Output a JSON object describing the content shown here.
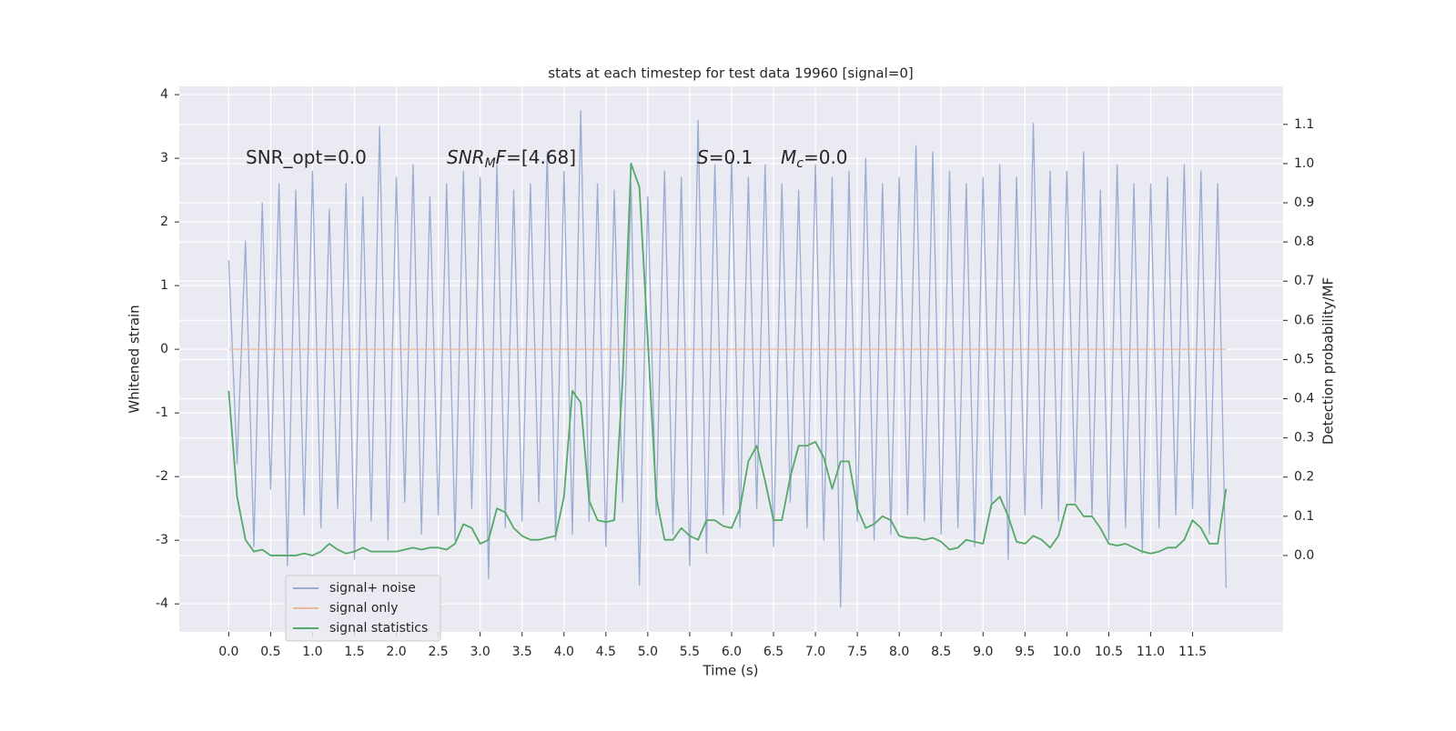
{
  "chart_data": {
    "type": "line",
    "title": "stats at each timestep for test data 19960 [signal=0]",
    "xlabel": "Time (s)",
    "ylabel": "Whitened strain",
    "y2label": "Detection probability/MF",
    "annotations": [
      [
        {
          "text": "SNR_opt=0.0",
          "style": "normal"
        }
      ],
      [
        {
          "text": "SNR",
          "style": "italic"
        },
        {
          "text": "M",
          "style": "sub"
        },
        {
          "text": "F",
          "style": "italic"
        },
        {
          "text": "=[4.68]",
          "style": "normal"
        }
      ],
      [
        {
          "text": "S",
          "style": "italic"
        },
        {
          "text": "=0.1",
          "style": "normal"
        }
      ],
      [
        {
          "text": "M",
          "style": "italic"
        },
        {
          "text": "c",
          "style": "sub"
        },
        {
          "text": "=0.0",
          "style": "normal"
        }
      ]
    ],
    "x": [
      0,
      0.1,
      0.2,
      0.3,
      0.4,
      0.5,
      0.6,
      0.7,
      0.8,
      0.9,
      1,
      1.1,
      1.2,
      1.3,
      1.4,
      1.5,
      1.6,
      1.7,
      1.8,
      1.9,
      2,
      2.1,
      2.2,
      2.3,
      2.4,
      2.5,
      2.6,
      2.7,
      2.8,
      2.9,
      3,
      3.1,
      3.2,
      3.3,
      3.4,
      3.5,
      3.6,
      3.7,
      3.8,
      3.9,
      4,
      4.1,
      4.2,
      4.3,
      4.4,
      4.5,
      4.6,
      4.7,
      4.8,
      4.9,
      5,
      5.1,
      5.2,
      5.3,
      5.4,
      5.5,
      5.6,
      5.7,
      5.8,
      5.9,
      6,
      6.1,
      6.2,
      6.3,
      6.4,
      6.5,
      6.6,
      6.7,
      6.8,
      6.9,
      7,
      7.1,
      7.2,
      7.3,
      7.4,
      7.5,
      7.6,
      7.7,
      7.8,
      7.9,
      8,
      8.1,
      8.2,
      8.3,
      8.4,
      8.5,
      8.6,
      8.7,
      8.8,
      8.9,
      9,
      9.1,
      9.2,
      9.3,
      9.4,
      9.5,
      9.6,
      9.7,
      9.8,
      9.9,
      10,
      10.1,
      10.2,
      10.3,
      10.4,
      10.5,
      10.6,
      10.7,
      10.8,
      10.9,
      11,
      11.1,
      11.2,
      11.3,
      11.4,
      11.5,
      11.6,
      11.7,
      11.8,
      11.9
    ],
    "series": [
      {
        "name": "signal+ noise",
        "color": "#9aacd1",
        "axis": "y",
        "values": [
          1.4,
          -1.8,
          1.7,
          -3.1,
          2.3,
          -2.2,
          2.6,
          -3.4,
          2.5,
          -2.6,
          2.8,
          -2.8,
          2.2,
          -2.5,
          2.6,
          -3.3,
          2.4,
          -2.7,
          3.5,
          -3.0,
          2.7,
          -2.4,
          2.9,
          -2.9,
          2.4,
          -2.6,
          2.6,
          -3.0,
          2.8,
          -2.5,
          2.7,
          -3.6,
          2.9,
          -2.8,
          2.5,
          -2.7,
          2.6,
          -2.4,
          3.1,
          -3.0,
          2.8,
          -2.9,
          3.75,
          -2.7,
          2.6,
          -3.1,
          2.5,
          -2.4,
          2.6,
          -3.7,
          2.4,
          -2.6,
          2.8,
          -2.9,
          2.7,
          -3.4,
          3.6,
          -3.2,
          2.9,
          -2.6,
          3.0,
          -2.8,
          2.7,
          -2.5,
          2.9,
          -3.1,
          2.6,
          -2.4,
          2.5,
          -2.8,
          2.9,
          -3.0,
          2.7,
          -4.05,
          2.8,
          -2.7,
          3.0,
          -3.0,
          2.6,
          -2.9,
          2.7,
          -2.6,
          3.2,
          -2.7,
          3.1,
          -2.9,
          2.8,
          -2.8,
          2.6,
          -3.1,
          2.7,
          -2.5,
          2.9,
          -3.3,
          2.7,
          -2.6,
          3.55,
          -2.5,
          2.8,
          -2.7,
          2.8,
          -2.4,
          3.1,
          -2.6,
          2.5,
          -3.0,
          2.9,
          -2.8,
          2.6,
          -3.2,
          2.6,
          -2.8,
          2.7,
          -2.6,
          2.9,
          -2.5,
          2.8,
          -2.9,
          2.6,
          -3.75
        ]
      },
      {
        "name": "signal only",
        "color": "#eeb79a",
        "axis": "y",
        "values": [
          0,
          0,
          0,
          0,
          0,
          0,
          0,
          0,
          0,
          0,
          0,
          0,
          0,
          0,
          0,
          0,
          0,
          0,
          0,
          0,
          0,
          0,
          0,
          0,
          0,
          0,
          0,
          0,
          0,
          0,
          0,
          0,
          0,
          0,
          0,
          0,
          0,
          0,
          0,
          0,
          0,
          0,
          0,
          0,
          0,
          0,
          0,
          0,
          0,
          0,
          0,
          0,
          0,
          0,
          0,
          0,
          0,
          0,
          0,
          0,
          0,
          0,
          0,
          0,
          0,
          0,
          0,
          0,
          0,
          0,
          0,
          0,
          0,
          0,
          0,
          0,
          0,
          0,
          0,
          0,
          0,
          0,
          0,
          0,
          0,
          0,
          0,
          0,
          0,
          0,
          0,
          0,
          0,
          0,
          0,
          0,
          0,
          0,
          0,
          0,
          0,
          0,
          0,
          0,
          0,
          0,
          0,
          0,
          0,
          0,
          0,
          0,
          0,
          0,
          0,
          0,
          0,
          0,
          0,
          0
        ]
      },
      {
        "name": "signal statistics",
        "color": "#55a868",
        "axis": "y2",
        "values": [
          0.42,
          0.15,
          0.04,
          0.01,
          0.015,
          0,
          0,
          0,
          0,
          0.005,
          0,
          0.01,
          0.03,
          0.015,
          0.005,
          0.01,
          0.02,
          0.01,
          0.01,
          0.01,
          0.01,
          0.015,
          0.02,
          0.015,
          0.02,
          0.02,
          0.015,
          0.03,
          0.08,
          0.07,
          0.03,
          0.04,
          0.12,
          0.11,
          0.07,
          0.05,
          0.04,
          0.04,
          0.045,
          0.05,
          0.15,
          0.42,
          0.39,
          0.14,
          0.09,
          0.085,
          0.09,
          0.45,
          1.0,
          0.94,
          0.55,
          0.15,
          0.04,
          0.04,
          0.07,
          0.05,
          0.04,
          0.09,
          0.09,
          0.075,
          0.07,
          0.12,
          0.24,
          0.28,
          0.19,
          0.09,
          0.09,
          0.2,
          0.28,
          0.28,
          0.29,
          0.25,
          0.17,
          0.24,
          0.24,
          0.12,
          0.07,
          0.08,
          0.1,
          0.09,
          0.05,
          0.045,
          0.045,
          0.04,
          0.045,
          0.035,
          0.015,
          0.02,
          0.04,
          0.035,
          0.03,
          0.13,
          0.15,
          0.1,
          0.035,
          0.03,
          0.05,
          0.04,
          0.02,
          0.05,
          0.13,
          0.13,
          0.1,
          0.1,
          0.07,
          0.03,
          0.025,
          0.03,
          0.02,
          0.01,
          0.005,
          0.01,
          0.02,
          0.02,
          0.04,
          0.09,
          0.07,
          0.03,
          0.03,
          0.17
        ]
      }
    ],
    "xlim": [
      -0.59,
      12.58
    ],
    "xticks": [
      {
        "value": 0,
        "label": "0.0"
      },
      0.5,
      {
        "value": 1,
        "label": "1.0"
      },
      1.5,
      {
        "value": 2,
        "label": "2.0"
      },
      2.5,
      {
        "value": 3,
        "label": "3.0"
      },
      3.5,
      {
        "value": 4,
        "label": "4.0"
      },
      4.5,
      {
        "value": 5,
        "label": "5.0"
      },
      5.5,
      {
        "value": 6,
        "label": "6.0"
      },
      6.5,
      {
        "value": 7,
        "label": "7.0"
      },
      7.5,
      {
        "value": 8,
        "label": "8.0"
      },
      8.5,
      {
        "value": 9,
        "label": "9.0"
      },
      9.5,
      {
        "value": 10,
        "label": "10.0"
      },
      10.5,
      {
        "value": 11,
        "label": "11.0"
      },
      11.5
    ],
    "ylim": [
      -4.44,
      4.13
    ],
    "yticks": [
      -4,
      -3,
      -2,
      -1,
      0,
      1,
      2,
      3,
      4
    ],
    "y2lim": [
      -0.195,
      1.197
    ],
    "y2ticks": [
      {
        "value": 0,
        "label": "0.0"
      },
      0.1,
      0.2,
      0.3,
      0.4,
      0.5,
      0.6,
      0.7,
      0.8,
      0.9,
      {
        "value": 1,
        "label": "1.0"
      },
      1.1
    ],
    "grid": true,
    "legend": "lower left"
  }
}
